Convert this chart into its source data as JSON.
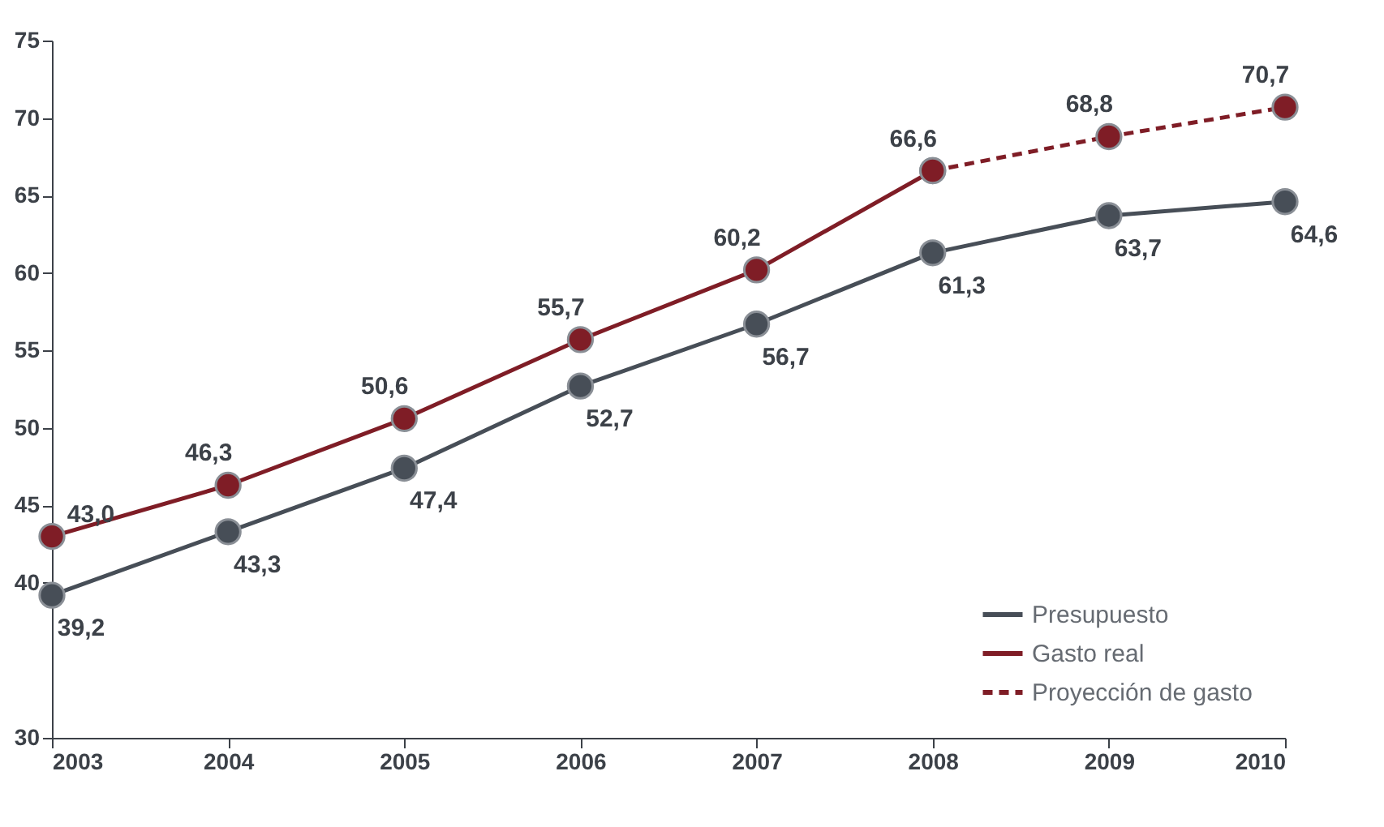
{
  "chart_data": {
    "type": "line",
    "categories": [
      "2003",
      "2004",
      "2005",
      "2006",
      "2007",
      "2008",
      "2009",
      "2010"
    ],
    "ylim": [
      30,
      75
    ],
    "yticks": [
      30,
      40,
      45,
      50,
      55,
      60,
      65,
      70,
      75
    ],
    "grid": false,
    "legend": "bottom right",
    "marker": "circle",
    "series": [
      {
        "name": "Presupuesto",
        "color": "#474e57",
        "values": [
          39.2,
          43.3,
          47.4,
          52.7,
          56.7,
          61.3,
          63.7,
          64.6
        ],
        "value_labels": [
          "39,2",
          "43,3",
          "47,4",
          "52,7",
          "56,7",
          "61,3",
          "63,7",
          "64,6"
        ],
        "line_style": "solid"
      },
      {
        "name": "Gasto real",
        "color": "#7f1d26",
        "values": [
          43.0,
          46.3,
          50.6,
          55.7,
          60.2,
          66.6,
          null,
          null
        ],
        "value_labels": [
          "43,0",
          "46,3",
          "50,6",
          "55,7",
          "60,2",
          "66,6",
          null,
          null
        ],
        "line_style": "solid"
      },
      {
        "name": "Proyección de gasto",
        "color": "#7f1d26",
        "values": [
          null,
          null,
          null,
          null,
          null,
          66.6,
          68.8,
          70.7
        ],
        "value_labels": [
          null,
          null,
          null,
          null,
          null,
          null,
          "68,8",
          "70,7"
        ],
        "line_style": "dashed"
      }
    ]
  }
}
